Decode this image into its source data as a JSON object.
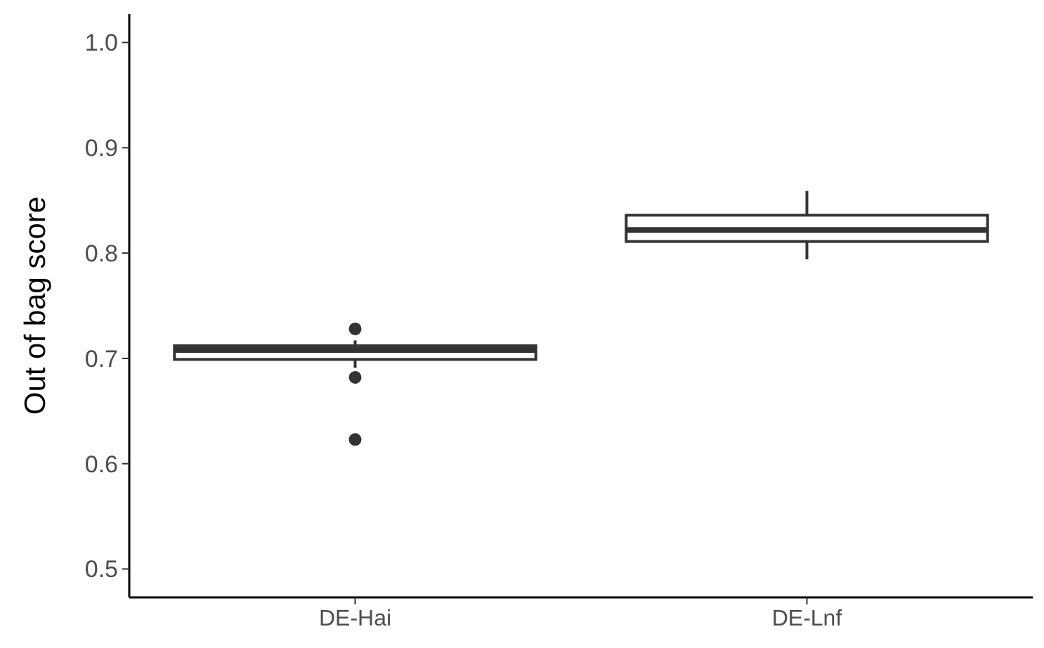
{
  "chart_data": {
    "type": "box",
    "ylabel": "Out of bag score",
    "categories": [
      "DE-Hai",
      "DE-Lnf"
    ],
    "boxes": [
      {
        "low": 0.691,
        "q1": 0.699,
        "median": 0.708,
        "q3": 0.712,
        "high": 0.717,
        "outliers": [
          0.728,
          0.682,
          0.623
        ]
      },
      {
        "low": 0.794,
        "q1": 0.811,
        "median": 0.822,
        "q3": 0.836,
        "high": 0.859
      }
    ],
    "ylim": [
      0.473,
      1.027
    ],
    "yticks": [
      {
        "value": 0.5,
        "label": "0.5"
      },
      {
        "value": 0.6,
        "label": "0.6"
      },
      {
        "value": 0.7,
        "label": "0.7"
      },
      {
        "value": 0.8,
        "label": "0.8"
      },
      {
        "value": 0.9,
        "label": "0.9"
      },
      {
        "value": 1.0,
        "label": "1.0"
      }
    ],
    "grid": false
  }
}
